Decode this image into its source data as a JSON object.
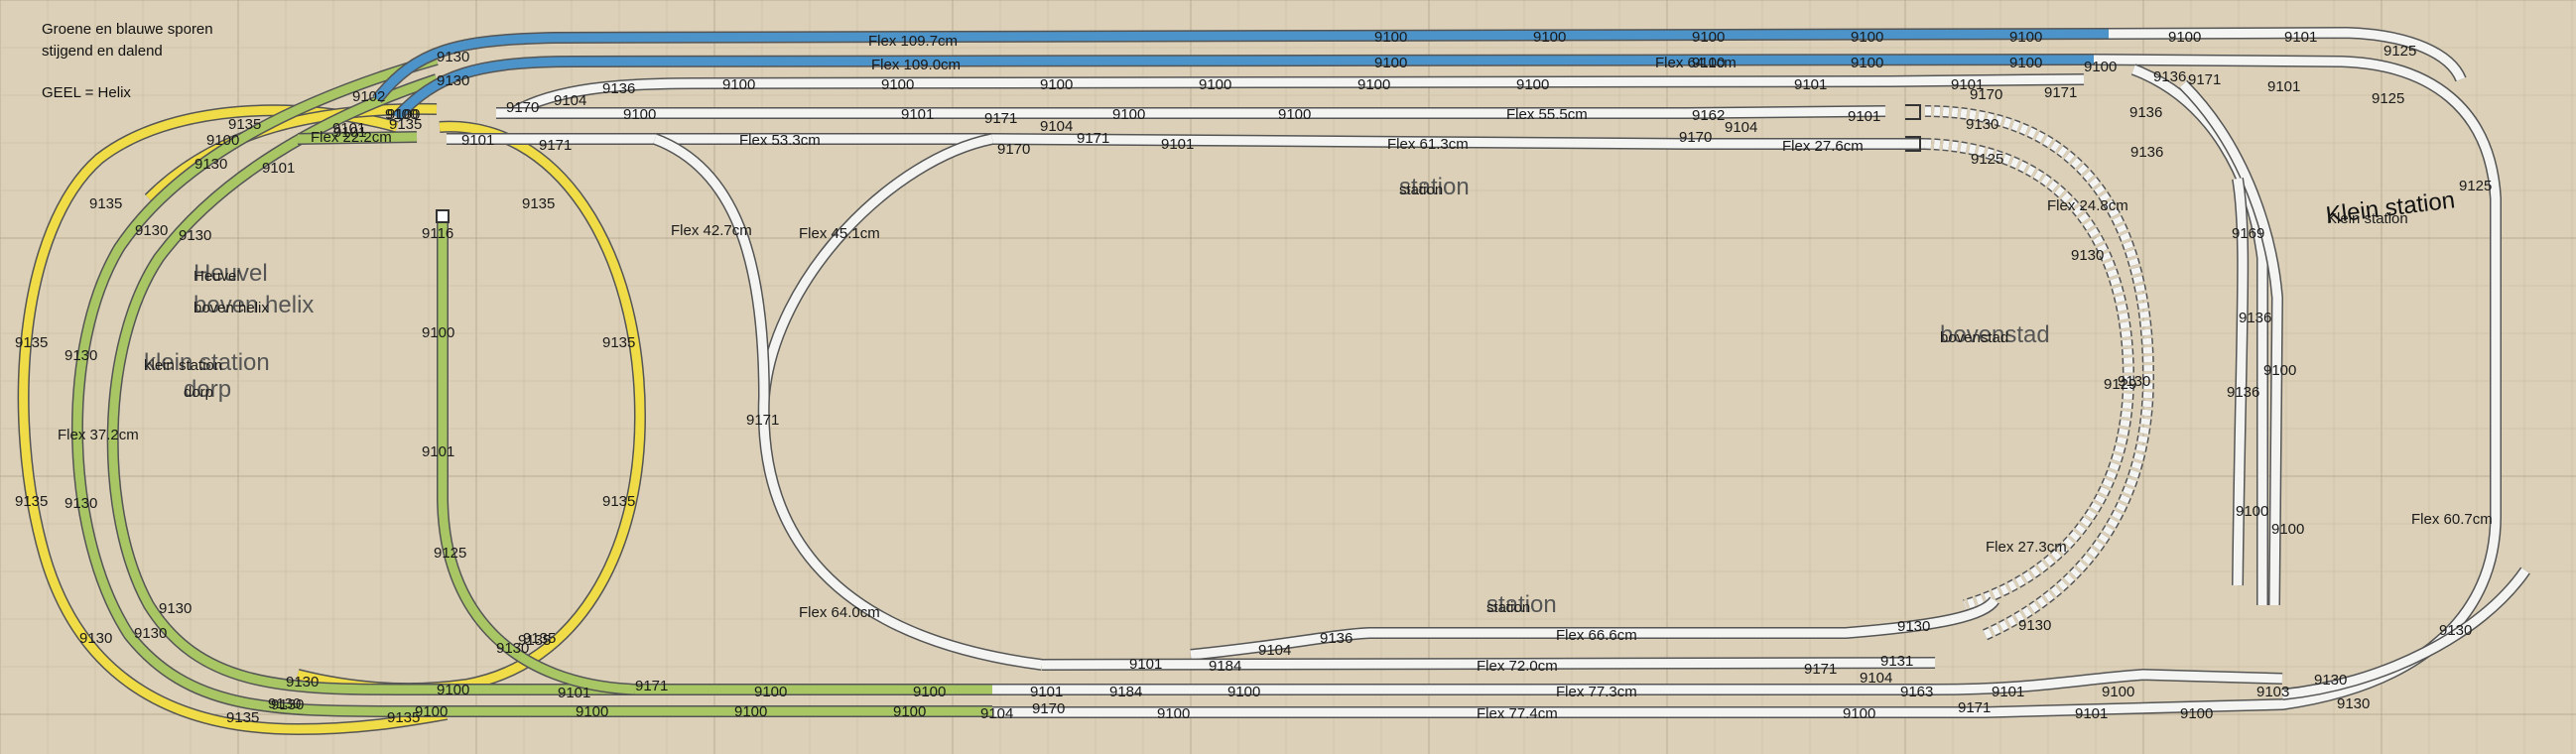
{
  "legend": {
    "line1": "Groene en blauwe sporen",
    "line2": "stijgend en dalend",
    "line3": "GEEL = Helix"
  },
  "areas": {
    "heuvel_line1": "Heuvel",
    "heuvel_line2": "boven helix",
    "dorp_line1": "klein station",
    "dorp_line2": "dorp",
    "station_top": "station",
    "station_bottom": "station",
    "bovenstad": "bovenstad",
    "klein_station": "Klein station"
  },
  "colors": {
    "background": "#dcd1b8",
    "grid": "#c7baa0",
    "rail": "#f4f4f2",
    "yellow_helix": "#f0dc46",
    "green": "#a8c664",
    "blue": "#4b93c8",
    "outline": "#555555"
  },
  "labels": [
    "9130",
    "9130",
    "Flex 109.7cm",
    "Flex 109.0cm",
    "9100",
    "9100",
    "9100",
    "9100",
    "9100",
    "9100",
    "9101",
    "9125",
    "9100",
    "9100",
    "9100",
    "9100",
    "Flex 64.1cm",
    "9100",
    "9136",
    "9171",
    "9101",
    "9125",
    "9102",
    "9100",
    "9170",
    "9104",
    "9136",
    "9100",
    "9100",
    "9100",
    "9100",
    "9100",
    "9100",
    "9101",
    "9170",
    "9101",
    "9171",
    "9135",
    "9101",
    "9135",
    "9100",
    "9100",
    "9101",
    "9171",
    "9104",
    "9100",
    "9100",
    "Flex 55.5cm",
    "9162",
    "9101",
    "9130",
    "9136",
    "9130",
    "9100",
    "9101",
    "Flex 22.2cm",
    "9101",
    "9171",
    "Flex 53.3cm",
    "9170",
    "9171",
    "9101",
    "Flex 61.3cm",
    "9170",
    "9104",
    "Flex 27.6cm",
    "9125",
    "9136",
    "9135",
    "9101",
    "9135",
    "station",
    "9125",
    "Klein station",
    "Flex 24.8cm",
    "9130",
    "9130",
    "Flex 42.7cm",
    "Flex 45.1cm",
    "9169",
    "9130",
    "Heuvel",
    "boven helix",
    "9116",
    "bovenstad",
    "9136",
    "9135",
    "9130",
    "klein station",
    "dorp",
    "9100",
    "9135",
    "9171",
    "9130",
    "9129",
    "9100",
    "9136",
    "Flex 37.2cm",
    "9101",
    "9100",
    "9100",
    "Flex 60.7cm",
    "9130",
    "9135",
    "9130",
    "9135",
    "9125",
    "Flex 27.3cm",
    "station",
    "9130",
    "Flex 64.0cm",
    "9135",
    "9130",
    "9136",
    "Flex 66.6cm",
    "9130",
    "9130",
    "9130",
    "9130",
    "9135",
    "9130",
    "9101",
    "9184",
    "9104",
    "Flex 72.0cm",
    "9171",
    "9104",
    "9131",
    "9130",
    "9100",
    "9101",
    "9171",
    "9100",
    "9100",
    "9101",
    "9184",
    "9100",
    "Flex 77.3cm",
    "9163",
    "9101",
    "9100",
    "9103",
    "9130",
    "9135",
    "9130",
    "9135",
    "9100",
    "9100",
    "9100",
    "9100",
    "9104",
    "9170",
    "9100",
    "Flex 77.4cm",
    "9100",
    "9171",
    "9101",
    "9100",
    "9130"
  ]
}
